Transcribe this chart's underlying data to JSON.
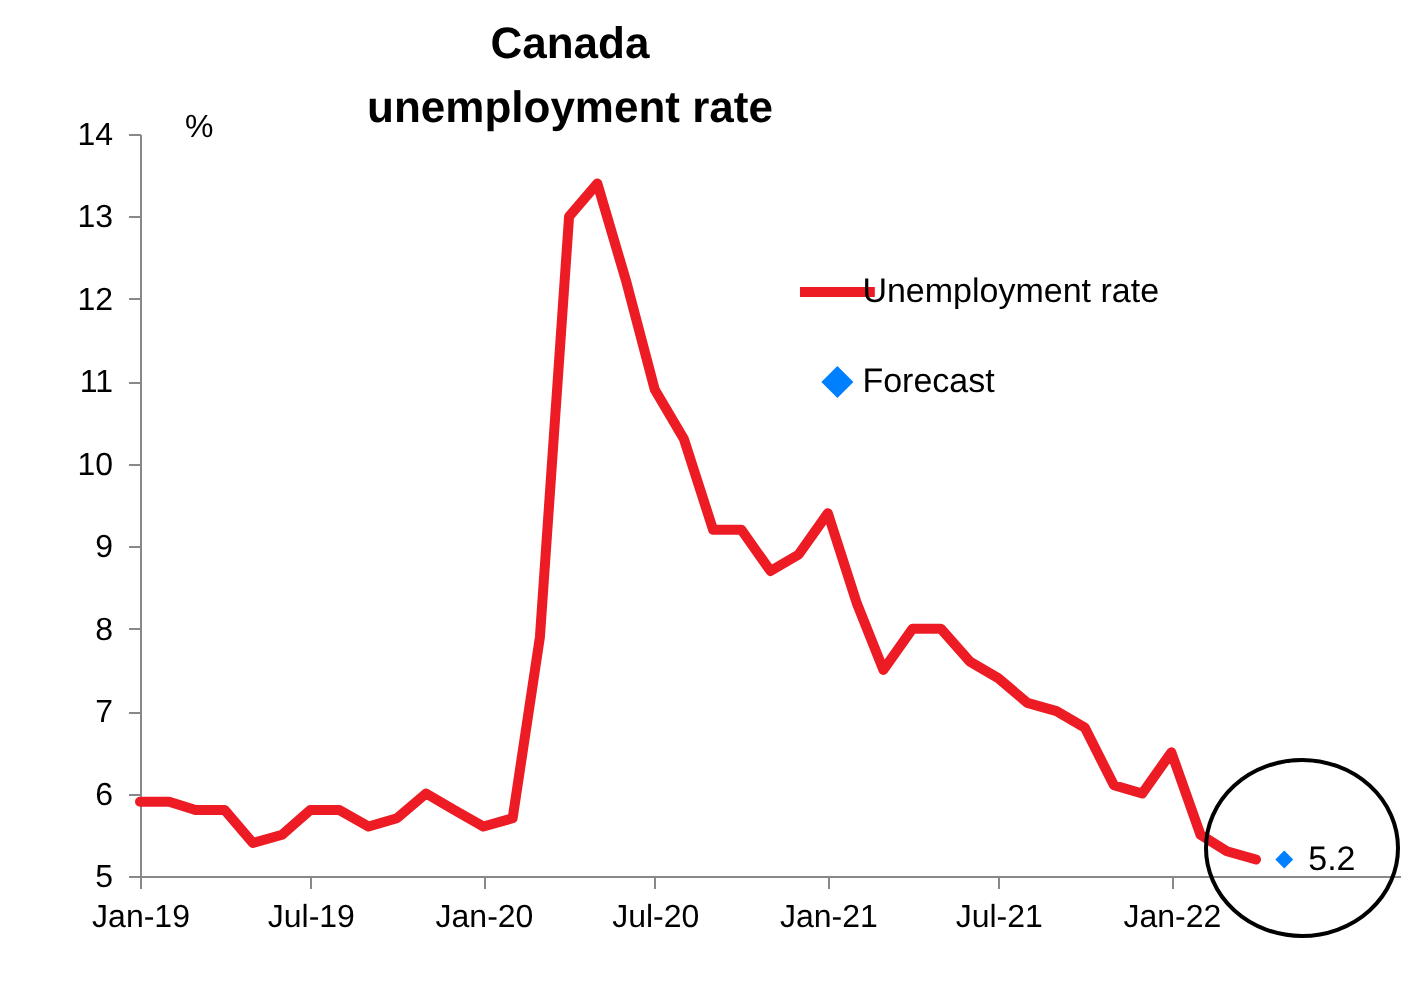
{
  "chart_data": {
    "type": "line",
    "title": "Canada unemployment rate",
    "ylabel": "%",
    "x": [
      "2019-01",
      "2019-02",
      "2019-03",
      "2019-04",
      "2019-05",
      "2019-06",
      "2019-07",
      "2019-08",
      "2019-09",
      "2019-10",
      "2019-11",
      "2019-12",
      "2020-01",
      "2020-02",
      "2020-03",
      "2020-04",
      "2020-05",
      "2020-06",
      "2020-07",
      "2020-08",
      "2020-09",
      "2020-10",
      "2020-11",
      "2020-12",
      "2021-01",
      "2021-02",
      "2021-03",
      "2021-04",
      "2021-05",
      "2021-06",
      "2021-07",
      "2021-08",
      "2021-09",
      "2021-10",
      "2021-11",
      "2021-12",
      "2022-01",
      "2022-02",
      "2022-03",
      "2022-04"
    ],
    "series": [
      {
        "name": "Unemployment rate",
        "type": "line",
        "color": "#ed1c24",
        "values": [
          5.9,
          5.9,
          5.8,
          5.8,
          5.4,
          5.5,
          5.8,
          5.8,
          5.6,
          5.7,
          6.0,
          5.8,
          5.6,
          5.7,
          7.9,
          13.0,
          13.4,
          12.2,
          10.9,
          10.3,
          9.2,
          9.2,
          8.7,
          8.9,
          9.4,
          8.3,
          7.5,
          8.0,
          8.0,
          7.6,
          7.4,
          7.1,
          7.0,
          6.8,
          6.1,
          6.0,
          6.5,
          5.5,
          5.3,
          5.2
        ]
      },
      {
        "name": "Forecast",
        "type": "scatter",
        "marker": "diamond",
        "color": "#0080ff",
        "x": [
          "2022-05"
        ],
        "values": [
          5.2
        ],
        "value_labels": [
          "5.2"
        ]
      }
    ],
    "xlim": [
      "2019-01",
      "2022-09"
    ],
    "xticks": [
      {
        "value": "2019-01",
        "label": "Jan-19"
      },
      {
        "value": "2019-07",
        "label": "Jul-19"
      },
      {
        "value": "2020-01",
        "label": "Jan-20"
      },
      {
        "value": "2020-07",
        "label": "Jul-20"
      },
      {
        "value": "2021-01",
        "label": "Jan-21"
      },
      {
        "value": "2021-07",
        "label": "Jul-21"
      },
      {
        "value": "2022-01",
        "label": "Jan-22"
      }
    ],
    "ylim": [
      5,
      14
    ],
    "yticks": [
      5,
      6,
      7,
      8,
      9,
      10,
      11,
      12,
      13,
      14
    ],
    "grid": false,
    "legend": "right"
  }
}
